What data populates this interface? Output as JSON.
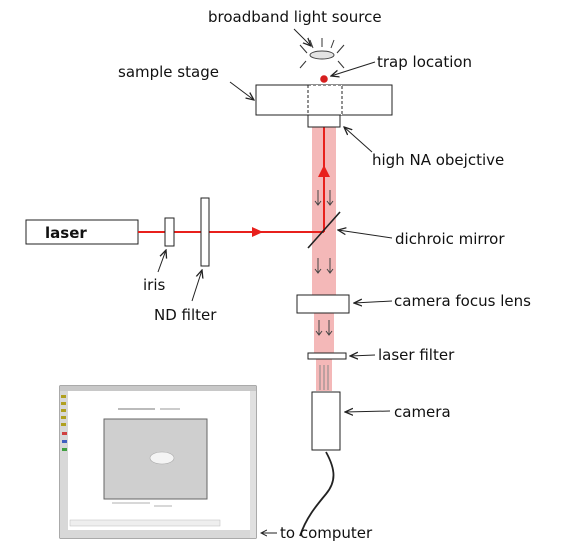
{
  "labels": {
    "light_source": "broadband light source",
    "trap_location": "trap location",
    "sample_stage": "sample stage",
    "objective": "high NA obejctive",
    "laser": "laser",
    "iris": "iris",
    "nd_filter": "ND filter",
    "dichroic_mirror": "dichroic mirror",
    "camera_focus_lens": "camera focus lens",
    "laser_filter": "laser filter",
    "camera": "camera",
    "to_computer": "to computer"
  },
  "colors": {
    "beam": "#e8201c",
    "beam_column": "#f4b8b8",
    "trap_dot": "#d61f1f",
    "outline": "#222222"
  }
}
